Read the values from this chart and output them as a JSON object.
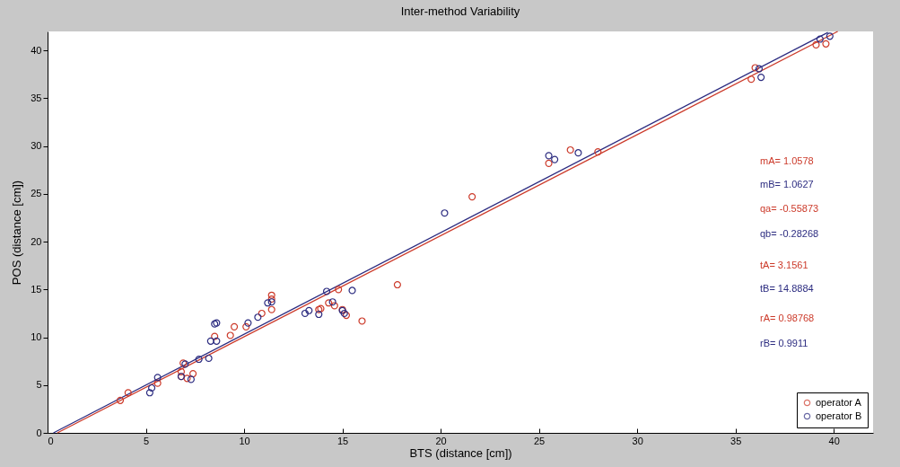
{
  "chart_data": {
    "type": "scatter",
    "title": "Inter-method Variability",
    "xlabel": "BTS (distance [cm])",
    "ylabel": "POS (distance [cm])",
    "xlim": [
      0,
      42
    ],
    "ylim": [
      0,
      42
    ],
    "xticks": [
      0,
      5,
      10,
      15,
      20,
      25,
      30,
      35,
      40
    ],
    "yticks": [
      0,
      5,
      10,
      15,
      20,
      25,
      30,
      35,
      40
    ],
    "grid": false,
    "legend": "bottom right",
    "series": [
      {
        "name": "operator A",
        "color": "#cc3a2a",
        "marker": "circle",
        "x": [
          3.7,
          4.1,
          5.6,
          6.8,
          6.9,
          6.8,
          7.4,
          7.1,
          8.5,
          9.3,
          9.5,
          10.1,
          10.9,
          11.4,
          11.4,
          11.4,
          13.8,
          14.8,
          13.9,
          14.3,
          14.6,
          15.0,
          15.2,
          16.0,
          17.8,
          21.6,
          25.5,
          26.6,
          28.0,
          35.8,
          36.0,
          39.1,
          39.6
        ],
        "values": [
          3.4,
          4.2,
          5.2,
          5.9,
          7.3,
          6.4,
          6.2,
          5.7,
          10.1,
          10.2,
          11.1,
          11.1,
          12.5,
          14.4,
          14.0,
          12.9,
          12.9,
          15.0,
          13.0,
          13.6,
          13.3,
          12.9,
          12.3,
          11.7,
          15.5,
          24.7,
          28.2,
          29.6,
          29.4,
          37.0,
          38.2,
          40.6,
          40.7
        ]
      },
      {
        "name": "operator B",
        "color": "#2c2c80",
        "marker": "circle",
        "x": [
          5.2,
          5.3,
          5.6,
          6.8,
          7.0,
          7.3,
          7.7,
          8.2,
          8.3,
          8.5,
          8.6,
          8.6,
          10.2,
          10.7,
          11.2,
          11.4,
          13.1,
          13.3,
          13.8,
          14.2,
          15.5,
          14.5,
          15.0,
          15.1,
          20.2,
          25.5,
          25.8,
          27.0,
          36.2,
          36.3,
          39.3,
          39.8
        ],
        "values": [
          4.2,
          4.7,
          5.8,
          5.9,
          7.2,
          5.6,
          7.7,
          7.8,
          9.6,
          11.4,
          11.5,
          9.6,
          11.5,
          12.1,
          13.6,
          13.7,
          12.5,
          12.8,
          12.4,
          14.8,
          14.9,
          13.7,
          12.8,
          12.5,
          23.0,
          29.0,
          28.6,
          29.3,
          38.1,
          37.2,
          41.2,
          41.5
        ]
      },
      {
        "type": "line",
        "color": "#cc3a2a",
        "x": [
          0.5,
          40.2
        ],
        "values": [
          0,
          42.0
        ]
      },
      {
        "type": "line",
        "color": "#2c2c80",
        "x": [
          0.3,
          39.7
        ],
        "values": [
          0,
          41.9
        ]
      }
    ],
    "annotations": [
      "mA= 1.0578",
      "mB= 1.0627",
      "qa= -0.55873",
      "qb= -0.28268",
      "tA= 3.1561",
      "tB= 14.8884",
      "rA= 0.98768",
      "rB= 0.9911"
    ]
  }
}
